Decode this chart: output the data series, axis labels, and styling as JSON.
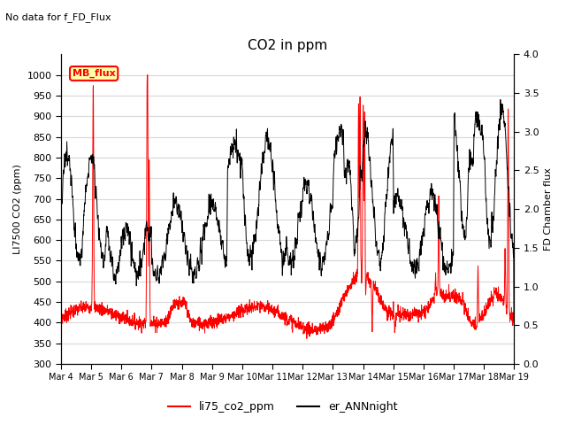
{
  "title": "CO2 in ppm",
  "subtitle": "No data for f_FD_Flux",
  "ylabel_left": "LI7500 CO2 (ppm)",
  "ylabel_right": "FD Chamber flux",
  "ylim_left": [
    300,
    1050
  ],
  "ylim_right": [
    0.0,
    4.0
  ],
  "yticks_left": [
    300,
    350,
    400,
    450,
    500,
    550,
    600,
    650,
    700,
    750,
    800,
    850,
    900,
    950,
    1000
  ],
  "yticks_right": [
    0.0,
    0.5,
    1.0,
    1.5,
    2.0,
    2.5,
    3.0,
    3.5,
    4.0
  ],
  "xtick_labels": [
    "Mar 4",
    "Mar 5",
    "Mar 6",
    "Mar 7",
    "Mar 8",
    "Mar 9",
    "Mar 10",
    "Mar 11",
    "Mar 12",
    "Mar 13",
    "Mar 14",
    "Mar 15",
    "Mar 16",
    "Mar 17",
    "Mar 18",
    "Mar 19"
  ],
  "legend_label_red": "li75_co2_ppm",
  "legend_label_black": "er_ANNnight",
  "legend_box_label": "MB_flux",
  "line_color_red": "#ff0000",
  "line_color_black": "#000000",
  "background_color": "#ffffff",
  "grid_color": "#d8d8d8",
  "figsize": [
    6.4,
    4.8
  ],
  "dpi": 100
}
